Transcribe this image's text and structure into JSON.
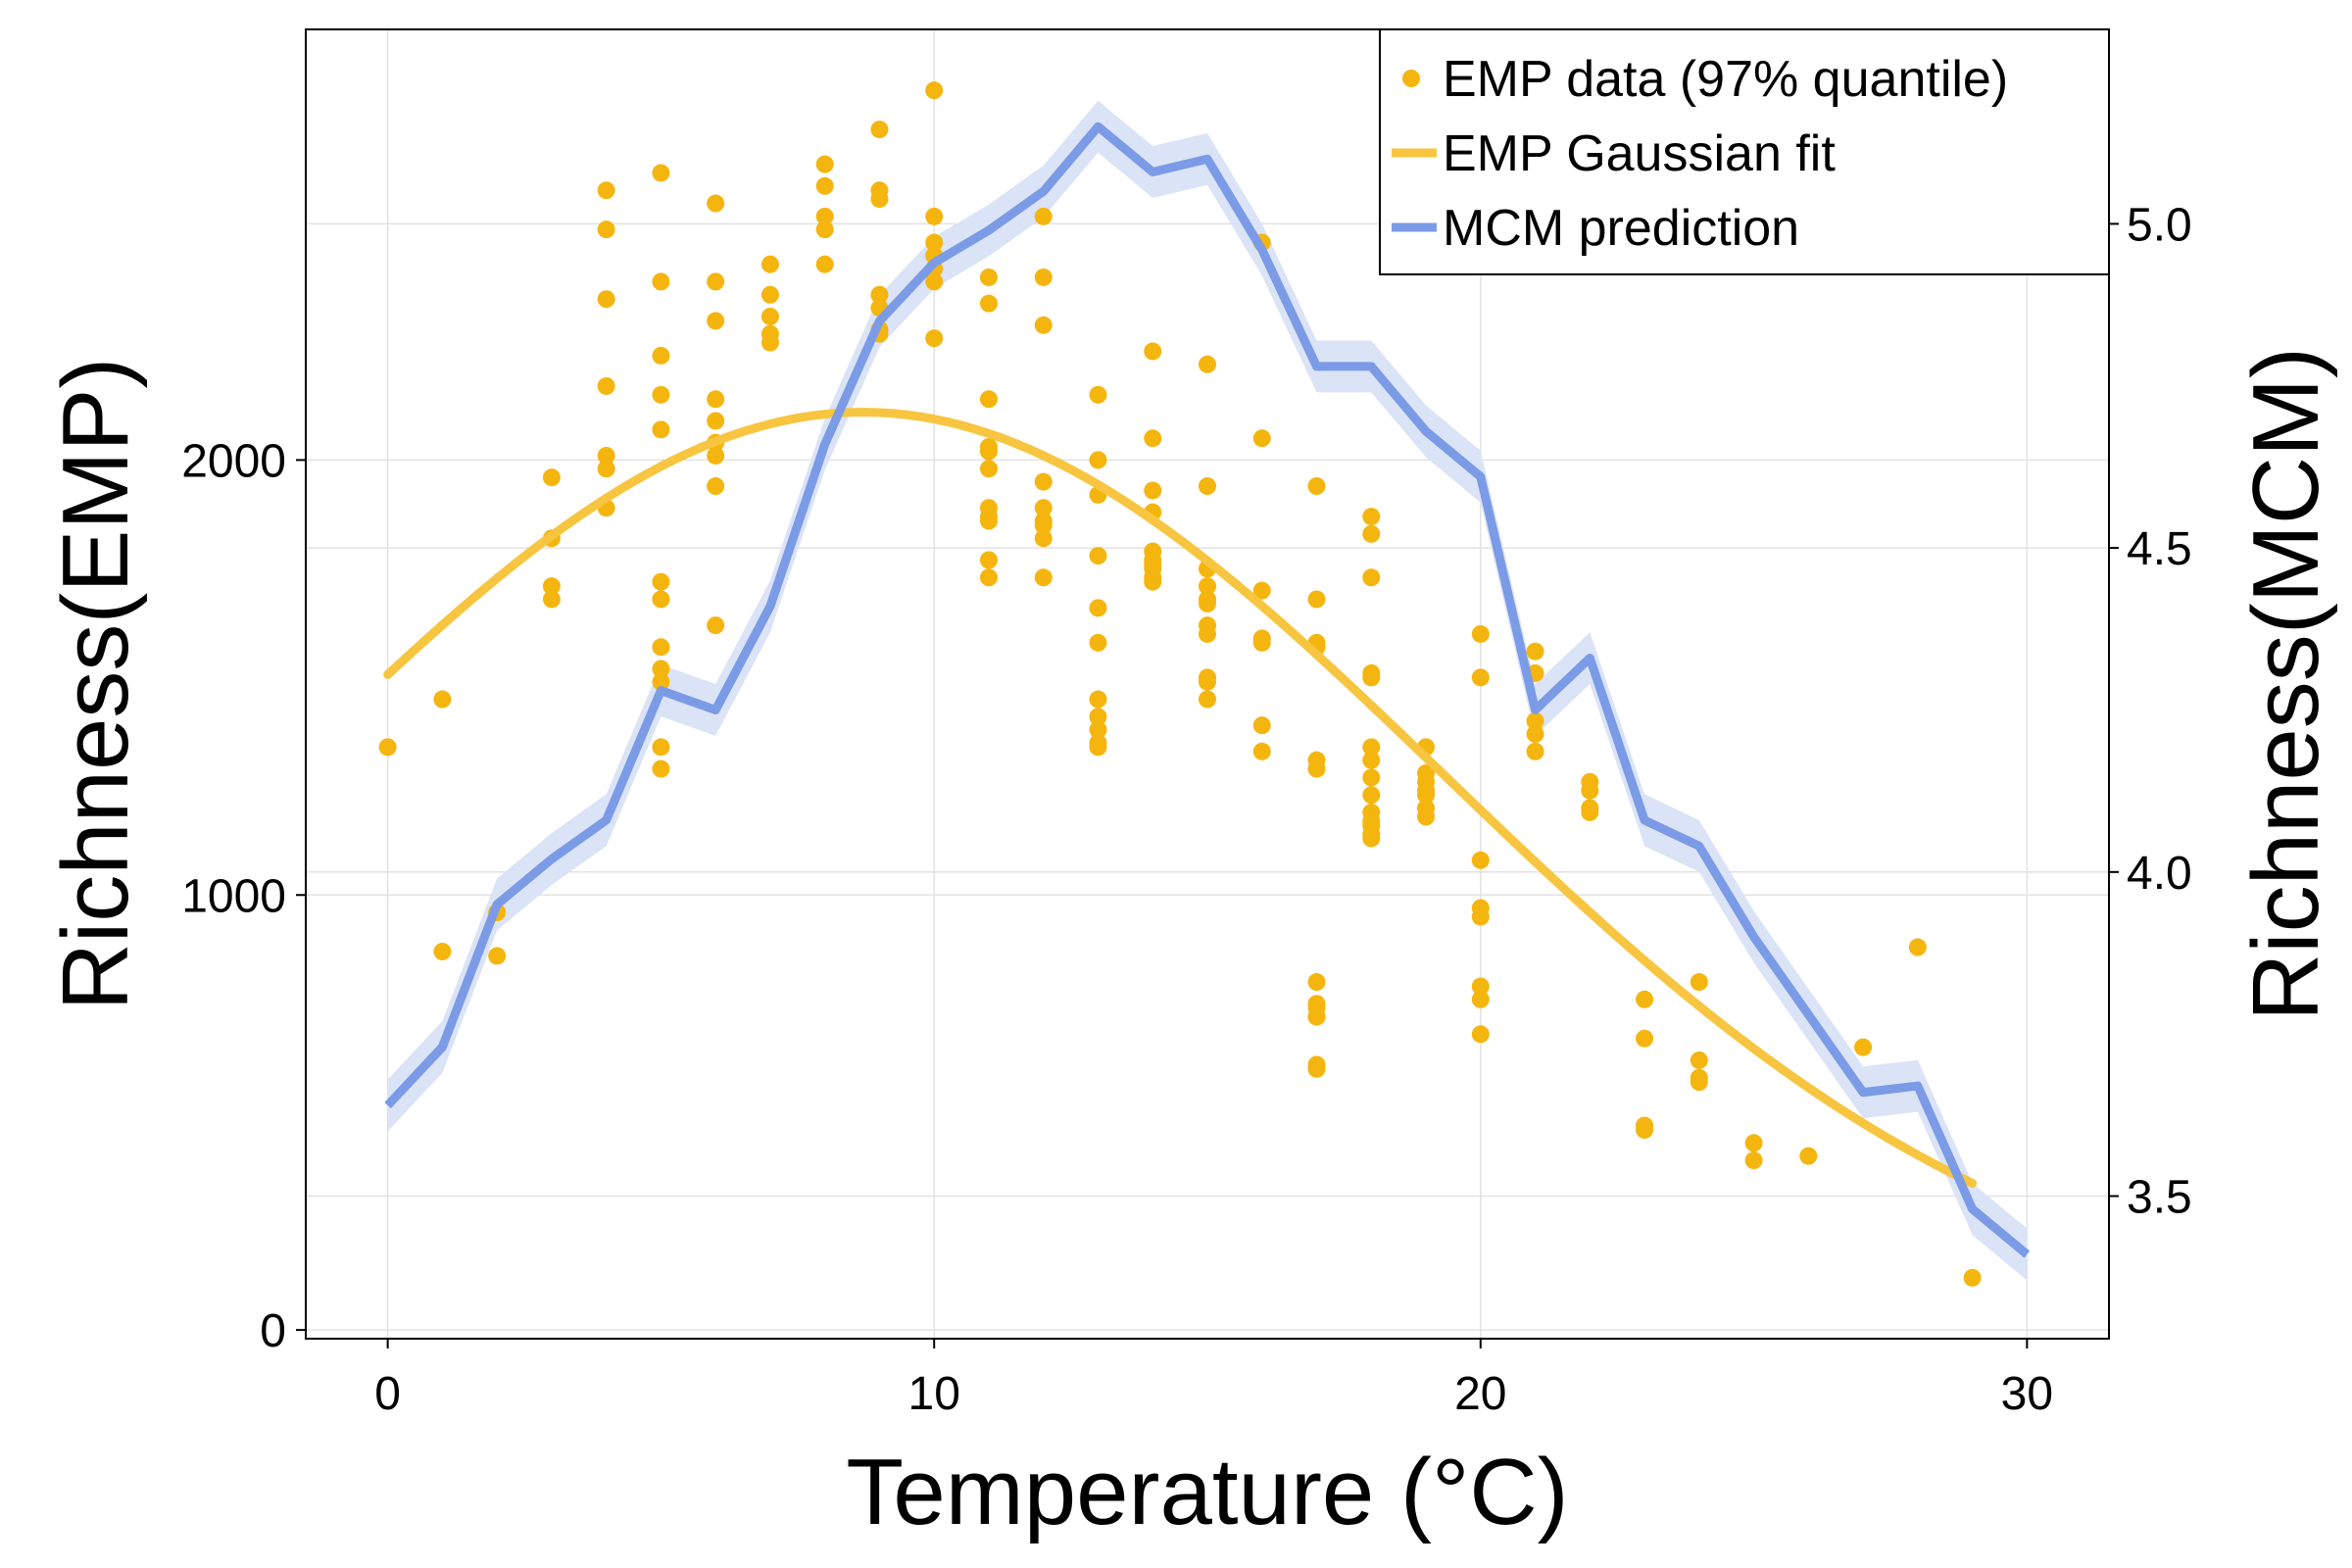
{
  "chart_data": {
    "type": "scatter",
    "xlabel": "Temperature (°C)",
    "ylabel_left": "Richness(EMP)",
    "ylabel_right": "Richness(MCM)",
    "xlim": [
      -1.5,
      31.5
    ],
    "ylim_left": [
      -20,
      2990
    ],
    "ylim_right": [
      3.28,
      5.3
    ],
    "x_ticks": [
      0,
      10,
      20,
      30
    ],
    "y_ticks_left": [
      0,
      1000,
      2000
    ],
    "y_ticks_right": [
      3.5,
      4.0,
      4.5,
      5.0
    ],
    "y_tick_labels_right": [
      "3.5",
      "4.0",
      "4.5",
      "5.0"
    ],
    "grid": true,
    "grid_y_left": [
      0,
      1000,
      2000
    ],
    "legend_position": "top-right",
    "colors": {
      "emp_points": "#f5b50f",
      "emp_fit": "#f7c540",
      "mcm_line": "#7b9be6",
      "mcm_band": "#dbe3f6"
    },
    "legend": [
      {
        "label": "EMP data (97% quantile)",
        "kind": "point",
        "color": "#f5b50f"
      },
      {
        "label": "EMP Gaussian fit",
        "kind": "line",
        "color": "#f7c540"
      },
      {
        "label": "MCM prediction",
        "kind": "line",
        "color": "#7b9be6"
      }
    ],
    "series": [
      {
        "name": "EMP data (97% quantile)",
        "axis": "left",
        "type": "scatter",
        "points": [
          [
            0,
            1340
          ],
          [
            1,
            1450
          ],
          [
            1,
            870
          ],
          [
            2,
            960
          ],
          [
            2,
            860
          ],
          [
            3,
            1960
          ],
          [
            3,
            1820
          ],
          [
            3,
            1710
          ],
          [
            3,
            1680
          ],
          [
            4,
            2620
          ],
          [
            4,
            2530
          ],
          [
            4,
            2370
          ],
          [
            4,
            2170
          ],
          [
            4,
            2010
          ],
          [
            4,
            1980
          ],
          [
            4,
            1890
          ],
          [
            5,
            2660
          ],
          [
            5,
            2410
          ],
          [
            5,
            2240
          ],
          [
            5,
            2150
          ],
          [
            5,
            2070
          ],
          [
            5,
            1720
          ],
          [
            5,
            1680
          ],
          [
            5,
            1570
          ],
          [
            5,
            1520
          ],
          [
            5,
            1490
          ],
          [
            5,
            1340
          ],
          [
            5,
            1290
          ],
          [
            6,
            2590
          ],
          [
            6,
            2410
          ],
          [
            6,
            2320
          ],
          [
            6,
            2140
          ],
          [
            6,
            2090
          ],
          [
            6,
            2040
          ],
          [
            6,
            2010
          ],
          [
            6,
            1940
          ],
          [
            6,
            1620
          ],
          [
            7,
            2450
          ],
          [
            7,
            2380
          ],
          [
            7,
            2330
          ],
          [
            7,
            2290
          ],
          [
            7,
            2270
          ],
          [
            8,
            2680
          ],
          [
            8,
            2630
          ],
          [
            8,
            2560
          ],
          [
            8,
            2530
          ],
          [
            8,
            2450
          ],
          [
            9,
            2760
          ],
          [
            9,
            2620
          ],
          [
            9,
            2600
          ],
          [
            9,
            2380
          ],
          [
            9,
            2350
          ],
          [
            9,
            2300
          ],
          [
            9,
            2290
          ],
          [
            10,
            2850
          ],
          [
            10,
            2560
          ],
          [
            10,
            2500
          ],
          [
            10,
            2470
          ],
          [
            10,
            2440
          ],
          [
            10,
            2410
          ],
          [
            10,
            2280
          ],
          [
            11,
            2420
          ],
          [
            11,
            2360
          ],
          [
            11,
            2140
          ],
          [
            11,
            2030
          ],
          [
            11,
            2020
          ],
          [
            11,
            1980
          ],
          [
            11,
            1890
          ],
          [
            11,
            1870
          ],
          [
            11,
            1860
          ],
          [
            11,
            1770
          ],
          [
            11,
            1730
          ],
          [
            12,
            2560
          ],
          [
            12,
            2420
          ],
          [
            12,
            2310
          ],
          [
            12,
            1950
          ],
          [
            12,
            1890
          ],
          [
            12,
            1860
          ],
          [
            12,
            1850
          ],
          [
            12,
            1820
          ],
          [
            12,
            1730
          ],
          [
            13,
            2150
          ],
          [
            13,
            2000
          ],
          [
            13,
            1920
          ],
          [
            13,
            1780
          ],
          [
            13,
            1660
          ],
          [
            13,
            1580
          ],
          [
            13,
            1450
          ],
          [
            13,
            1410
          ],
          [
            13,
            1380
          ],
          [
            13,
            1350
          ],
          [
            13,
            1340
          ],
          [
            14,
            2250
          ],
          [
            14,
            2050
          ],
          [
            14,
            1930
          ],
          [
            14,
            1880
          ],
          [
            14,
            1790
          ],
          [
            14,
            1770
          ],
          [
            14,
            1760
          ],
          [
            14,
            1750
          ],
          [
            14,
            1730
          ],
          [
            14,
            1720
          ],
          [
            15,
            2220
          ],
          [
            15,
            1940
          ],
          [
            15,
            1750
          ],
          [
            15,
            1710
          ],
          [
            15,
            1680
          ],
          [
            15,
            1670
          ],
          [
            15,
            1620
          ],
          [
            15,
            1600
          ],
          [
            15,
            1500
          ],
          [
            15,
            1490
          ],
          [
            15,
            1450
          ],
          [
            16,
            2500
          ],
          [
            16,
            2050
          ],
          [
            16,
            1700
          ],
          [
            16,
            1590
          ],
          [
            16,
            1580
          ],
          [
            16,
            1390
          ],
          [
            16,
            1330
          ],
          [
            17,
            1940
          ],
          [
            17,
            1680
          ],
          [
            17,
            1580
          ],
          [
            17,
            1570
          ],
          [
            17,
            1310
          ],
          [
            17,
            1290
          ],
          [
            17,
            800
          ],
          [
            17,
            750
          ],
          [
            17,
            740
          ],
          [
            17,
            720
          ],
          [
            17,
            610
          ],
          [
            17,
            600
          ],
          [
            18,
            1870
          ],
          [
            18,
            1830
          ],
          [
            18,
            1730
          ],
          [
            18,
            1510
          ],
          [
            18,
            1500
          ],
          [
            18,
            1340
          ],
          [
            18,
            1310
          ],
          [
            18,
            1270
          ],
          [
            18,
            1230
          ],
          [
            18,
            1190
          ],
          [
            18,
            1170
          ],
          [
            18,
            1160
          ],
          [
            18,
            1140
          ],
          [
            18,
            1130
          ],
          [
            19,
            1340
          ],
          [
            19,
            1280
          ],
          [
            19,
            1260
          ],
          [
            19,
            1240
          ],
          [
            19,
            1230
          ],
          [
            19,
            1200
          ],
          [
            19,
            1180
          ],
          [
            20,
            1600
          ],
          [
            20,
            1500
          ],
          [
            20,
            1080
          ],
          [
            20,
            970
          ],
          [
            20,
            950
          ],
          [
            20,
            790
          ],
          [
            20,
            760
          ],
          [
            20,
            680
          ],
          [
            21,
            1560
          ],
          [
            21,
            1510
          ],
          [
            21,
            1400
          ],
          [
            21,
            1370
          ],
          [
            21,
            1330
          ],
          [
            22,
            1260
          ],
          [
            22,
            1240
          ],
          [
            22,
            1200
          ],
          [
            22,
            1190
          ],
          [
            23,
            760
          ],
          [
            23,
            670
          ],
          [
            23,
            470
          ],
          [
            23,
            460
          ],
          [
            24,
            800
          ],
          [
            24,
            620
          ],
          [
            24,
            580
          ],
          [
            24,
            570
          ],
          [
            25,
            430
          ],
          [
            25,
            390
          ],
          [
            26,
            400
          ],
          [
            27,
            650
          ],
          [
            28,
            880
          ],
          [
            29,
            120
          ]
        ]
      },
      {
        "name": "EMP Gaussian fit",
        "axis": "left",
        "type": "line",
        "gaussian": {
          "amplitude": 2110,
          "mean": 8.7,
          "sigma": 10.6,
          "x_range": [
            0,
            29
          ]
        }
      },
      {
        "name": "MCM prediction",
        "axis": "right",
        "type": "line",
        "band_halfwidth": 0.04,
        "x": [
          0,
          1,
          2,
          3,
          4,
          5,
          6,
          7,
          8,
          9,
          10,
          11,
          12,
          13,
          14,
          15,
          16,
          17,
          18,
          19,
          20,
          21,
          22,
          23,
          24,
          25,
          26,
          27,
          28,
          29,
          30
        ],
        "y": [
          3.64,
          3.73,
          3.95,
          4.02,
          4.08,
          4.28,
          4.25,
          4.41,
          4.66,
          4.85,
          4.94,
          4.99,
          5.05,
          5.15,
          5.08,
          5.1,
          4.96,
          4.78,
          4.78,
          4.68,
          4.61,
          4.25,
          4.33,
          4.08,
          4.04,
          3.9,
          3.78,
          3.66,
          3.67,
          3.48,
          3.41
        ]
      }
    ]
  }
}
